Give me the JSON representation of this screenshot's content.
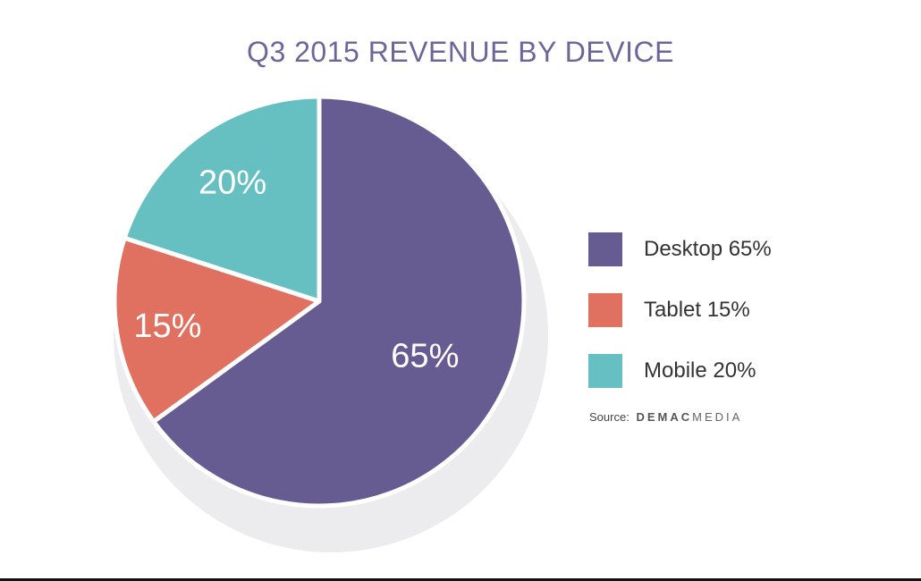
{
  "chart_data": {
    "type": "pie",
    "title": "Q3 2015 REVENUE BY DEVICE",
    "slices": [
      {
        "name": "Desktop",
        "value": 65,
        "label": "65%",
        "legend": "Desktop 65%",
        "color": "#665c91"
      },
      {
        "name": "Tablet",
        "value": 15,
        "label": "15%",
        "legend": "Tablet 15%",
        "color": "#e07060"
      },
      {
        "name": "Mobile",
        "value": 20,
        "label": "20%",
        "legend": "Mobile 20%",
        "color": "#66bfc0"
      }
    ],
    "legend_position": "right"
  },
  "source": {
    "prefix": "Source:",
    "brand_bold": "DEMAC",
    "brand_light": "MEDIA"
  }
}
